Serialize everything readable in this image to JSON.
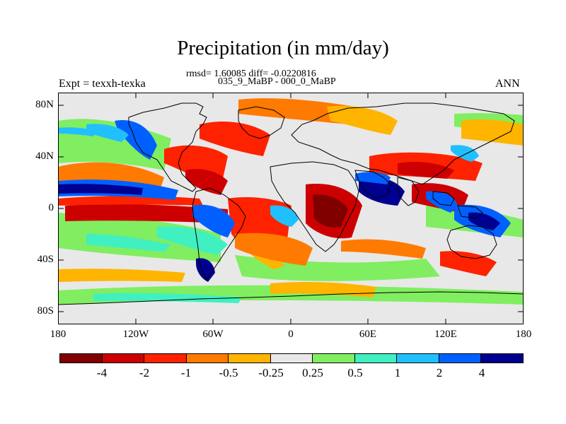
{
  "header": {
    "title": "Precipitation (in mm/day)",
    "stats": "rmsd= 1.60085  diff= -0.0220816",
    "periods": "035_9_MaBP - 000_0_MaBP",
    "experiment": "Expt = texxh-texka",
    "season": "ANN"
  },
  "axes": {
    "x_ticks": [
      "180",
      "120W",
      "60W",
      "0",
      "60E",
      "120E",
      "180"
    ],
    "y_ticks": [
      "80N",
      "40N",
      "0",
      "40S",
      "80S"
    ]
  },
  "colorbar": {
    "colors": [
      "#800000",
      "#cc0000",
      "#ff2200",
      "#ff7a00",
      "#ffb400",
      "#e8e8e8",
      "#80ee60",
      "#40f0c0",
      "#20c0ff",
      "#0060ff",
      "#000090"
    ],
    "labels": [
      "-4",
      "-2",
      "-1",
      "-0.5",
      "-0.25",
      "0.25",
      "0.5",
      "1",
      "2",
      "4"
    ]
  }
}
